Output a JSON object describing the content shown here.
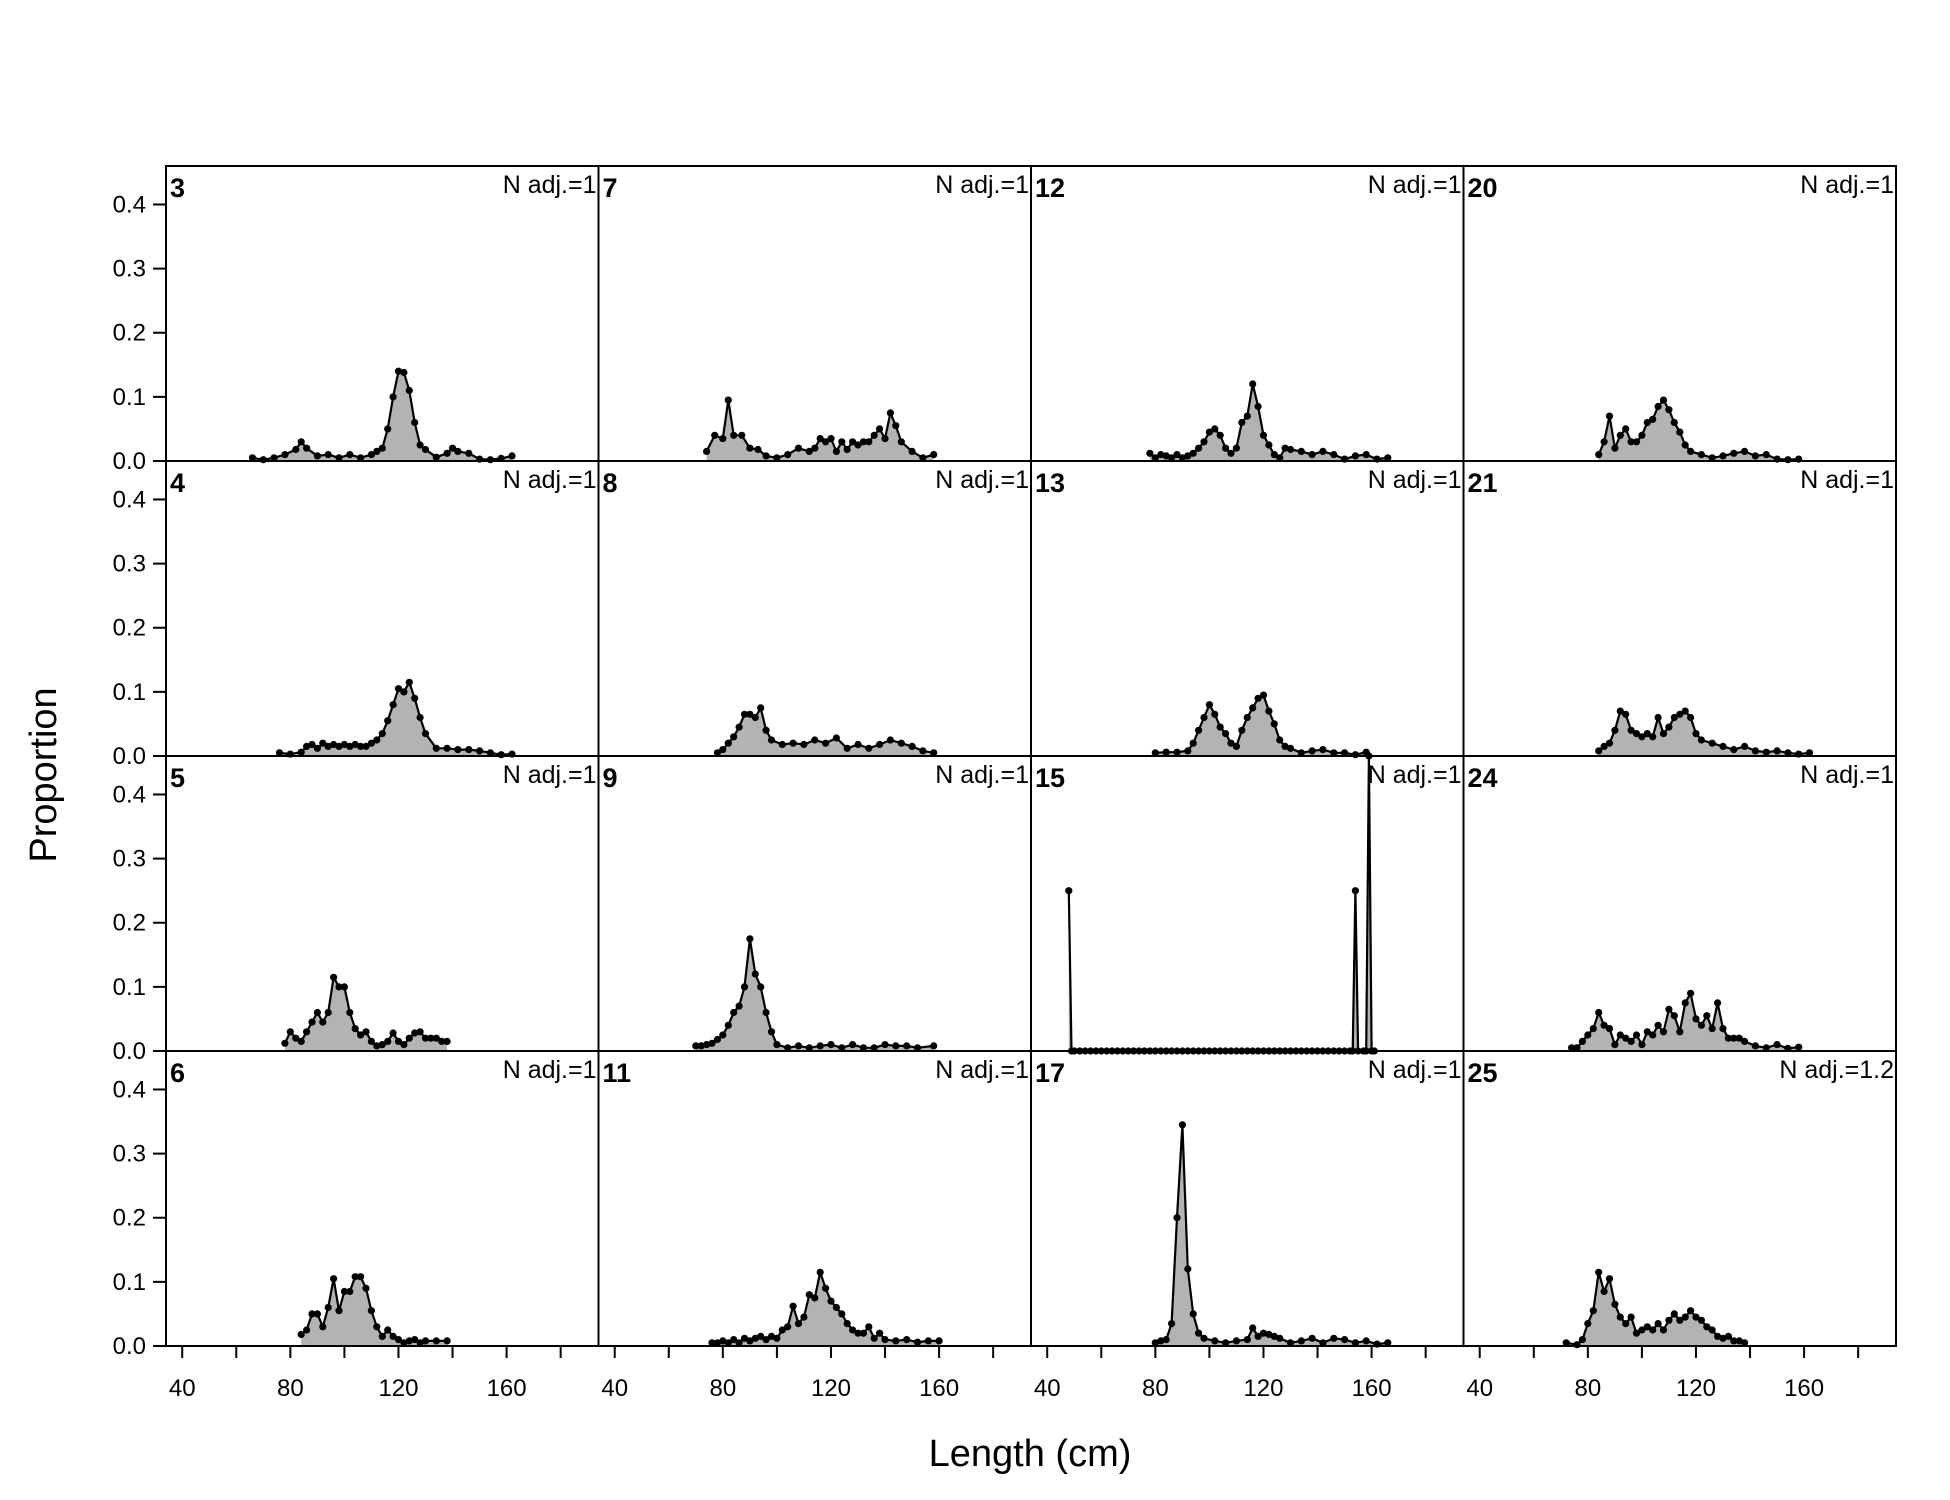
{
  "chart_data": {
    "type": "area",
    "xlabel": "Length (cm)",
    "ylabel": "Proportion",
    "xlim": [
      34,
      194
    ],
    "ylim": [
      0,
      0.46
    ],
    "x_ticks": [
      40,
      80,
      120,
      160
    ],
    "y_ticks": [
      0.0,
      0.1,
      0.2,
      0.3,
      0.4
    ],
    "y_tick_labels": [
      "0.0",
      "0.1",
      "0.2",
      "0.3",
      "0.4"
    ],
    "x_minor_step": 20,
    "colors": {
      "fill": "#b3b3b3",
      "line": "#000000"
    },
    "panels": [
      {
        "id": "3",
        "nadj": "N adj.=1",
        "x": [
          66,
          70,
          74,
          78,
          82,
          84,
          86,
          90,
          94,
          98,
          102,
          106,
          110,
          112,
          114,
          116,
          118,
          120,
          122,
          124,
          126,
          128,
          130,
          134,
          138,
          140,
          142,
          146,
          150,
          154,
          158,
          162
        ],
        "y": [
          0.005,
          0.002,
          0.005,
          0.01,
          0.018,
          0.03,
          0.02,
          0.008,
          0.01,
          0.005,
          0.01,
          0.005,
          0.01,
          0.015,
          0.02,
          0.05,
          0.1,
          0.14,
          0.138,
          0.11,
          0.06,
          0.025,
          0.018,
          0.006,
          0.012,
          0.02,
          0.015,
          0.012,
          0.003,
          0.002,
          0.004,
          0.008
        ]
      },
      {
        "id": "7",
        "nadj": "N adj.=1",
        "x": [
          74,
          77,
          80,
          82,
          84,
          87,
          90,
          93,
          96,
          100,
          104,
          108,
          112,
          114,
          116,
          118,
          120,
          122,
          124,
          126,
          128,
          130,
          132,
          134,
          136,
          138,
          140,
          142,
          144,
          146,
          150,
          154,
          158
        ],
        "y": [
          0.015,
          0.04,
          0.035,
          0.095,
          0.04,
          0.04,
          0.02,
          0.018,
          0.008,
          0.005,
          0.01,
          0.02,
          0.015,
          0.02,
          0.035,
          0.03,
          0.035,
          0.015,
          0.03,
          0.018,
          0.03,
          0.025,
          0.03,
          0.03,
          0.04,
          0.05,
          0.035,
          0.075,
          0.055,
          0.03,
          0.015,
          0.005,
          0.01
        ]
      },
      {
        "id": "12",
        "nadj": "N adj.=1",
        "x": [
          78,
          80,
          82,
          84,
          86,
          88,
          90,
          92,
          94,
          96,
          98,
          100,
          102,
          104,
          106,
          108,
          110,
          112,
          114,
          116,
          118,
          120,
          122,
          124,
          126,
          128,
          130,
          134,
          138,
          142,
          146,
          150,
          154,
          158,
          162,
          166
        ],
        "y": [
          0.012,
          0.005,
          0.01,
          0.008,
          0.005,
          0.01,
          0.005,
          0.008,
          0.012,
          0.02,
          0.03,
          0.045,
          0.05,
          0.04,
          0.02,
          0.012,
          0.02,
          0.06,
          0.07,
          0.12,
          0.085,
          0.04,
          0.025,
          0.01,
          0.005,
          0.02,
          0.018,
          0.015,
          0.01,
          0.015,
          0.01,
          0.003,
          0.008,
          0.01,
          0.003,
          0.005
        ]
      },
      {
        "id": "20",
        "nadj": "N adj.=1",
        "x": [
          84,
          86,
          88,
          90,
          92,
          94,
          96,
          98,
          100,
          102,
          104,
          106,
          108,
          110,
          112,
          114,
          116,
          118,
          122,
          126,
          130,
          134,
          138,
          142,
          146,
          150,
          154,
          158
        ],
        "y": [
          0.01,
          0.03,
          0.07,
          0.02,
          0.04,
          0.05,
          0.03,
          0.03,
          0.04,
          0.06,
          0.065,
          0.085,
          0.095,
          0.08,
          0.06,
          0.045,
          0.025,
          0.015,
          0.01,
          0.005,
          0.008,
          0.012,
          0.015,
          0.008,
          0.01,
          0.003,
          0.002,
          0.003
        ]
      },
      {
        "id": "4",
        "nadj": "N adj.=1",
        "x": [
          76,
          80,
          84,
          86,
          88,
          90,
          92,
          94,
          96,
          98,
          100,
          102,
          104,
          106,
          108,
          110,
          112,
          114,
          116,
          118,
          120,
          122,
          124,
          126,
          128,
          130,
          134,
          138,
          142,
          146,
          150,
          154,
          158,
          162
        ],
        "y": [
          0.005,
          0.003,
          0.006,
          0.015,
          0.018,
          0.012,
          0.02,
          0.015,
          0.018,
          0.015,
          0.018,
          0.015,
          0.018,
          0.015,
          0.015,
          0.02,
          0.025,
          0.035,
          0.055,
          0.08,
          0.105,
          0.1,
          0.115,
          0.09,
          0.06,
          0.035,
          0.012,
          0.012,
          0.01,
          0.01,
          0.008,
          0.005,
          0.002,
          0.003
        ]
      },
      {
        "id": "8",
        "nadj": "N adj.=1",
        "x": [
          78,
          80,
          82,
          84,
          86,
          88,
          90,
          92,
          94,
          96,
          98,
          102,
          106,
          110,
          114,
          118,
          122,
          126,
          130,
          134,
          138,
          142,
          146,
          150,
          154,
          158
        ],
        "y": [
          0.005,
          0.01,
          0.02,
          0.03,
          0.045,
          0.065,
          0.065,
          0.06,
          0.075,
          0.04,
          0.025,
          0.018,
          0.02,
          0.018,
          0.025,
          0.02,
          0.028,
          0.012,
          0.018,
          0.012,
          0.018,
          0.025,
          0.02,
          0.015,
          0.008,
          0.005
        ]
      },
      {
        "id": "13",
        "nadj": "N adj.=1",
        "x": [
          80,
          84,
          88,
          92,
          94,
          96,
          98,
          100,
          102,
          104,
          106,
          108,
          110,
          112,
          114,
          116,
          118,
          120,
          122,
          124,
          126,
          128,
          130,
          134,
          138,
          142,
          146,
          150,
          154,
          158
        ],
        "y": [
          0.005,
          0.006,
          0.006,
          0.008,
          0.02,
          0.04,
          0.06,
          0.08,
          0.065,
          0.045,
          0.035,
          0.02,
          0.015,
          0.04,
          0.06,
          0.075,
          0.09,
          0.095,
          0.07,
          0.05,
          0.025,
          0.015,
          0.012,
          0.005,
          0.008,
          0.01,
          0.005,
          0.005,
          0.002,
          0.006
        ]
      },
      {
        "id": "21",
        "nadj": "N adj.=1",
        "x": [
          84,
          86,
          88,
          90,
          92,
          94,
          96,
          98,
          100,
          102,
          104,
          106,
          108,
          110,
          112,
          114,
          116,
          118,
          120,
          122,
          126,
          130,
          134,
          138,
          142,
          146,
          150,
          154,
          158,
          162
        ],
        "y": [
          0.008,
          0.015,
          0.02,
          0.04,
          0.07,
          0.065,
          0.04,
          0.035,
          0.03,
          0.035,
          0.03,
          0.06,
          0.035,
          0.045,
          0.06,
          0.065,
          0.07,
          0.06,
          0.035,
          0.025,
          0.02,
          0.015,
          0.01,
          0.015,
          0.008,
          0.006,
          0.008,
          0.005,
          0.003,
          0.005
        ]
      },
      {
        "id": "5",
        "nadj": "N adj.=1",
        "x": [
          78,
          80,
          82,
          84,
          86,
          88,
          90,
          92,
          94,
          96,
          98,
          100,
          102,
          104,
          106,
          108,
          110,
          112,
          114,
          116,
          118,
          120,
          122,
          124,
          126,
          128,
          130,
          132,
          134,
          136,
          138
        ],
        "y": [
          0.012,
          0.03,
          0.02,
          0.015,
          0.03,
          0.045,
          0.06,
          0.045,
          0.06,
          0.115,
          0.1,
          0.1,
          0.06,
          0.035,
          0.025,
          0.03,
          0.015,
          0.008,
          0.01,
          0.015,
          0.028,
          0.015,
          0.01,
          0.02,
          0.028,
          0.03,
          0.02,
          0.02,
          0.02,
          0.015,
          0.015
        ]
      },
      {
        "id": "9",
        "nadj": "N adj.=1",
        "x": [
          70,
          72,
          74,
          76,
          78,
          80,
          82,
          84,
          86,
          88,
          90,
          92,
          94,
          96,
          98,
          100,
          104,
          108,
          112,
          116,
          120,
          124,
          128,
          132,
          136,
          140,
          144,
          148,
          152,
          158
        ],
        "y": [
          0.008,
          0.008,
          0.01,
          0.012,
          0.018,
          0.025,
          0.04,
          0.06,
          0.07,
          0.1,
          0.175,
          0.12,
          0.1,
          0.06,
          0.03,
          0.01,
          0.005,
          0.008,
          0.005,
          0.008,
          0.01,
          0.005,
          0.01,
          0.005,
          0.005,
          0.01,
          0.008,
          0.008,
          0.005,
          0.008
        ]
      },
      {
        "id": "15",
        "nadj": "N adj.=1",
        "x": [
          48,
          49,
          50,
          52,
          54,
          56,
          58,
          60,
          62,
          64,
          66,
          68,
          70,
          72,
          74,
          76,
          78,
          80,
          82,
          84,
          86,
          88,
          90,
          92,
          94,
          96,
          98,
          100,
          102,
          104,
          106,
          108,
          110,
          112,
          114,
          116,
          118,
          120,
          122,
          124,
          126,
          128,
          130,
          132,
          134,
          136,
          138,
          140,
          142,
          144,
          146,
          148,
          150,
          152,
          153,
          154,
          155,
          157,
          158,
          159,
          160,
          161
        ],
        "y": [
          0.25,
          0,
          0,
          0,
          0,
          0,
          0,
          0,
          0,
          0,
          0,
          0,
          0,
          0,
          0,
          0,
          0,
          0,
          0,
          0,
          0,
          0,
          0,
          0,
          0,
          0,
          0,
          0,
          0,
          0,
          0,
          0,
          0,
          0,
          0,
          0,
          0,
          0,
          0,
          0,
          0,
          0,
          0,
          0,
          0,
          0,
          0,
          0,
          0,
          0,
          0,
          0,
          0,
          0,
          0,
          0.25,
          0,
          0,
          0,
          0.46,
          0,
          0
        ]
      },
      {
        "id": "24",
        "nadj": "N adj.=1",
        "x": [
          74,
          76,
          78,
          80,
          82,
          84,
          86,
          88,
          90,
          92,
          94,
          96,
          98,
          100,
          102,
          104,
          106,
          108,
          110,
          112,
          114,
          116,
          118,
          120,
          122,
          124,
          126,
          128,
          130,
          132,
          134,
          136,
          138,
          142,
          146,
          150,
          154,
          158
        ],
        "y": [
          0.005,
          0.005,
          0.015,
          0.025,
          0.035,
          0.06,
          0.04,
          0.035,
          0.01,
          0.025,
          0.02,
          0.015,
          0.025,
          0.01,
          0.03,
          0.025,
          0.04,
          0.03,
          0.065,
          0.055,
          0.03,
          0.075,
          0.09,
          0.05,
          0.04,
          0.055,
          0.035,
          0.075,
          0.035,
          0.02,
          0.02,
          0.02,
          0.015,
          0.008,
          0.005,
          0.01,
          0.004,
          0.006
        ]
      },
      {
        "id": "6",
        "nadj": "N adj.=1",
        "x": [
          84,
          86,
          88,
          90,
          92,
          94,
          96,
          98,
          100,
          102,
          104,
          106,
          108,
          110,
          112,
          114,
          116,
          118,
          120,
          122,
          124,
          126,
          128,
          130,
          134,
          138
        ],
        "y": [
          0.018,
          0.025,
          0.05,
          0.05,
          0.03,
          0.06,
          0.105,
          0.055,
          0.085,
          0.085,
          0.108,
          0.108,
          0.09,
          0.055,
          0.03,
          0.015,
          0.025,
          0.015,
          0.01,
          0.005,
          0.008,
          0.01,
          0.005,
          0.008,
          0.008,
          0.008
        ]
      },
      {
        "id": "11",
        "nadj": "N adj.=1",
        "x": [
          76,
          78,
          80,
          82,
          84,
          86,
          88,
          90,
          92,
          94,
          96,
          98,
          100,
          102,
          104,
          106,
          108,
          110,
          112,
          114,
          116,
          118,
          120,
          122,
          124,
          126,
          128,
          130,
          132,
          134,
          136,
          138,
          140,
          144,
          148,
          152,
          156,
          160
        ],
        "y": [
          0.005,
          0.005,
          0.008,
          0.005,
          0.01,
          0.005,
          0.012,
          0.008,
          0.012,
          0.015,
          0.01,
          0.015,
          0.012,
          0.025,
          0.03,
          0.062,
          0.035,
          0.045,
          0.08,
          0.075,
          0.115,
          0.09,
          0.07,
          0.06,
          0.05,
          0.035,
          0.025,
          0.02,
          0.02,
          0.03,
          0.012,
          0.02,
          0.01,
          0.008,
          0.01,
          0.006,
          0.008,
          0.008
        ]
      },
      {
        "id": "17",
        "nadj": "N adj.=1",
        "x": [
          80,
          82,
          84,
          86,
          88,
          90,
          92,
          94,
          96,
          98,
          102,
          106,
          110,
          114,
          116,
          118,
          120,
          122,
          124,
          126,
          130,
          134,
          138,
          142,
          146,
          150,
          154,
          158,
          162,
          166
        ],
        "y": [
          0.005,
          0.008,
          0.01,
          0.035,
          0.2,
          0.345,
          0.12,
          0.05,
          0.02,
          0.012,
          0.008,
          0.005,
          0.008,
          0.01,
          0.028,
          0.015,
          0.02,
          0.018,
          0.015,
          0.012,
          0.005,
          0.008,
          0.012,
          0.005,
          0.012,
          0.01,
          0.005,
          0.008,
          0.003,
          0.005
        ]
      },
      {
        "id": "25",
        "nadj": "N adj.=1.2",
        "x": [
          72,
          76,
          78,
          80,
          82,
          84,
          86,
          88,
          90,
          92,
          94,
          96,
          98,
          100,
          102,
          104,
          106,
          108,
          110,
          112,
          114,
          116,
          118,
          120,
          122,
          124,
          126,
          128,
          130,
          132,
          134,
          136,
          138
        ],
        "y": [
          0.005,
          0.002,
          0.01,
          0.035,
          0.055,
          0.115,
          0.085,
          0.105,
          0.065,
          0.045,
          0.035,
          0.045,
          0.02,
          0.025,
          0.03,
          0.025,
          0.035,
          0.025,
          0.04,
          0.05,
          0.04,
          0.045,
          0.055,
          0.045,
          0.04,
          0.03,
          0.025,
          0.015,
          0.012,
          0.015,
          0.008,
          0.008,
          0.005
        ]
      }
    ]
  }
}
